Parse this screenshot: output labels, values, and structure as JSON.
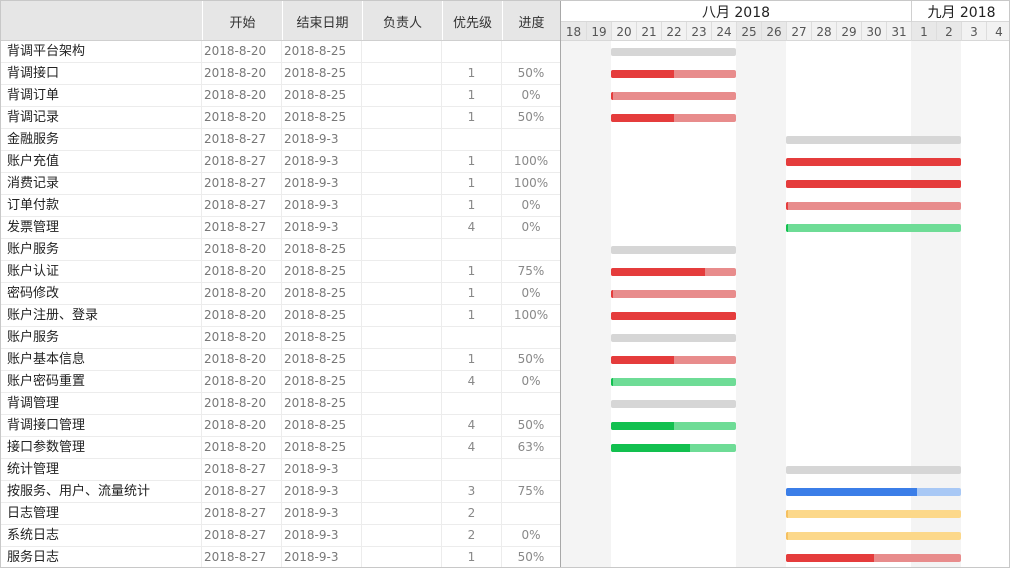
{
  "columns": {
    "name": "",
    "start": "开始",
    "end": "结束日期",
    "owner": "负责人",
    "priority": "优先级",
    "progress": "进度"
  },
  "timeline": {
    "months": [
      "八月 2018",
      "九月 2018"
    ],
    "days": [
      "18",
      "19",
      "20",
      "21",
      "22",
      "23",
      "24",
      "25",
      "26",
      "27",
      "28",
      "29",
      "30",
      "31",
      "1",
      "2",
      "3",
      "4"
    ]
  },
  "colors": {
    "group_bar": "#d6d6d6",
    "red_fill": "#e53c3c",
    "red_track": "#e88c8c",
    "green_fill": "#12c04f",
    "green_track": "#6edc96",
    "blue_fill": "#3b7ee8",
    "blue_track": "#a8c8f5",
    "yellow_fill": "#f5c060",
    "yellow_track": "#fcd88a"
  },
  "tasks": [
    {
      "name": "背调平台架构",
      "start": "2018-8-20",
      "end": "2018-8-25",
      "owner": "",
      "priority": "",
      "progress": "",
      "type": "group",
      "color": "gray",
      "pct": 0,
      "from": 2,
      "to": 7
    },
    {
      "name": "背调接口",
      "start": "2018-8-20",
      "end": "2018-8-25",
      "owner": "",
      "priority": "1",
      "progress": "50%",
      "type": "task",
      "color": "red",
      "pct": 50,
      "from": 2,
      "to": 7
    },
    {
      "name": "背调订单",
      "start": "2018-8-20",
      "end": "2018-8-25",
      "owner": "",
      "priority": "1",
      "progress": "0%",
      "type": "task",
      "color": "red",
      "pct": 0,
      "from": 2,
      "to": 7
    },
    {
      "name": "背调记录",
      "start": "2018-8-20",
      "end": "2018-8-25",
      "owner": "",
      "priority": "1",
      "progress": "50%",
      "type": "task",
      "color": "red",
      "pct": 50,
      "from": 2,
      "to": 7
    },
    {
      "name": "金融服务",
      "start": "2018-8-27",
      "end": "2018-9-3",
      "owner": "",
      "priority": "",
      "progress": "",
      "type": "group",
      "color": "gray",
      "pct": 0,
      "from": 9,
      "to": 16
    },
    {
      "name": "账户充值",
      "start": "2018-8-27",
      "end": "2018-9-3",
      "owner": "",
      "priority": "1",
      "progress": "100%",
      "type": "task",
      "color": "red",
      "pct": 100,
      "from": 9,
      "to": 16
    },
    {
      "name": "消费记录",
      "start": "2018-8-27",
      "end": "2018-9-3",
      "owner": "",
      "priority": "1",
      "progress": "100%",
      "type": "task",
      "color": "red",
      "pct": 100,
      "from": 9,
      "to": 16
    },
    {
      "name": "订单付款",
      "start": "2018-8-27",
      "end": "2018-9-3",
      "owner": "",
      "priority": "1",
      "progress": "0%",
      "type": "task",
      "color": "red",
      "pct": 0,
      "from": 9,
      "to": 16
    },
    {
      "name": "发票管理",
      "start": "2018-8-27",
      "end": "2018-9-3",
      "owner": "",
      "priority": "4",
      "progress": "0%",
      "type": "task",
      "color": "green",
      "pct": 0,
      "from": 9,
      "to": 16
    },
    {
      "name": "账户服务",
      "start": "2018-8-20",
      "end": "2018-8-25",
      "owner": "",
      "priority": "",
      "progress": "",
      "type": "group",
      "color": "gray",
      "pct": 0,
      "from": 2,
      "to": 7
    },
    {
      "name": "账户认证",
      "start": "2018-8-20",
      "end": "2018-8-25",
      "owner": "",
      "priority": "1",
      "progress": "75%",
      "type": "task",
      "color": "red",
      "pct": 75,
      "from": 2,
      "to": 7
    },
    {
      "name": "密码修改",
      "start": "2018-8-20",
      "end": "2018-8-25",
      "owner": "",
      "priority": "1",
      "progress": "0%",
      "type": "task",
      "color": "red",
      "pct": 0,
      "from": 2,
      "to": 7
    },
    {
      "name": "账户注册、登录",
      "start": "2018-8-20",
      "end": "2018-8-25",
      "owner": "",
      "priority": "1",
      "progress": "100%",
      "type": "task",
      "color": "red",
      "pct": 100,
      "from": 2,
      "to": 7
    },
    {
      "name": "账户服务",
      "start": "2018-8-20",
      "end": "2018-8-25",
      "owner": "",
      "priority": "",
      "progress": "",
      "type": "group",
      "color": "gray",
      "pct": 0,
      "from": 2,
      "to": 7
    },
    {
      "name": "账户基本信息",
      "start": "2018-8-20",
      "end": "2018-8-25",
      "owner": "",
      "priority": "1",
      "progress": "50%",
      "type": "task",
      "color": "red",
      "pct": 50,
      "from": 2,
      "to": 7
    },
    {
      "name": "账户密码重置",
      "start": "2018-8-20",
      "end": "2018-8-25",
      "owner": "",
      "priority": "4",
      "progress": "0%",
      "type": "task",
      "color": "green",
      "pct": 0,
      "from": 2,
      "to": 7
    },
    {
      "name": "背调管理",
      "start": "2018-8-20",
      "end": "2018-8-25",
      "owner": "",
      "priority": "",
      "progress": "",
      "type": "group",
      "color": "gray",
      "pct": 0,
      "from": 2,
      "to": 7
    },
    {
      "name": "背调接口管理",
      "start": "2018-8-20",
      "end": "2018-8-25",
      "owner": "",
      "priority": "4",
      "progress": "50%",
      "type": "task",
      "color": "green",
      "pct": 50,
      "from": 2,
      "to": 7
    },
    {
      "name": "接口参数管理",
      "start": "2018-8-20",
      "end": "2018-8-25",
      "owner": "",
      "priority": "4",
      "progress": "63%",
      "type": "task",
      "color": "green",
      "pct": 63,
      "from": 2,
      "to": 7
    },
    {
      "name": "统计管理",
      "start": "2018-8-27",
      "end": "2018-9-3",
      "owner": "",
      "priority": "",
      "progress": "",
      "type": "group",
      "color": "gray",
      "pct": 0,
      "from": 9,
      "to": 16
    },
    {
      "name": "按服务、用户、流量统计",
      "start": "2018-8-27",
      "end": "2018-9-3",
      "owner": "",
      "priority": "3",
      "progress": "75%",
      "type": "task",
      "color": "blue",
      "pct": 75,
      "from": 9,
      "to": 16
    },
    {
      "name": "日志管理",
      "start": "2018-8-27",
      "end": "2018-9-3",
      "owner": "",
      "priority": "2",
      "progress": "",
      "type": "task",
      "color": "yellow",
      "pct": 0,
      "from": 9,
      "to": 16
    },
    {
      "name": "系统日志",
      "start": "2018-8-27",
      "end": "2018-9-3",
      "owner": "",
      "priority": "2",
      "progress": "0%",
      "type": "task",
      "color": "yellow",
      "pct": 0,
      "from": 9,
      "to": 16
    },
    {
      "name": "服务日志",
      "start": "2018-8-27",
      "end": "2018-9-3",
      "owner": "",
      "priority": "1",
      "progress": "50%",
      "type": "task",
      "color": "red",
      "pct": 50,
      "from": 9,
      "to": 16
    }
  ]
}
